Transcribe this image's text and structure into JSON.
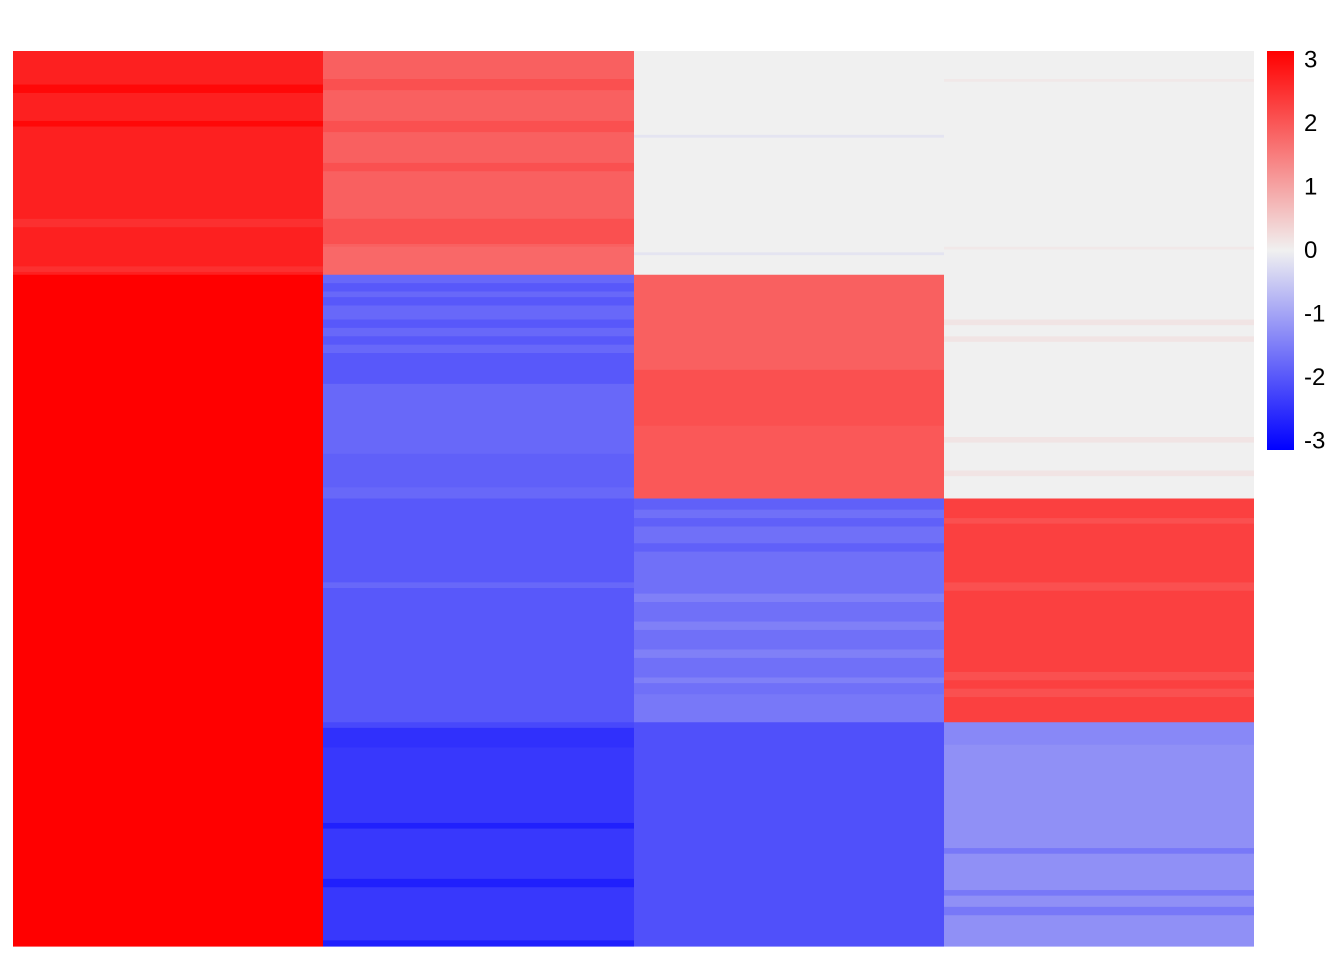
{
  "chart_data": {
    "type": "heatmap",
    "title": "",
    "xlabel": "",
    "ylabel": "",
    "columns": 4,
    "row_blocks": 4,
    "rows_per_block": 80,
    "color_scale": {
      "min": -3,
      "max": 3,
      "low_color": "#0000ff",
      "mid_color": "#f0f0f0",
      "high_color": "#ff0000",
      "ticks": [
        3,
        2,
        1,
        0,
        -1,
        -2,
        -3
      ],
      "tick_labels": [
        "3",
        "2",
        "1",
        "0",
        "-1",
        "-2",
        "-3"
      ]
    },
    "block_values": [
      [
        2.6,
        1.8,
        0.0,
        0.0
      ],
      [
        3.0,
        -1.7,
        2.0,
        0.0
      ],
      [
        3.0,
        -1.9,
        -1.6,
        2.2
      ],
      [
        3.0,
        -2.4,
        -2.0,
        -1.3
      ]
    ],
    "row_variations": [
      {
        "block": 0,
        "column": 0,
        "rows": [
          12,
          13,
          14,
          25,
          26
        ],
        "value": 2.9
      },
      {
        "block": 0,
        "column": 0,
        "rows": [
          60,
          61,
          62,
          77,
          78
        ],
        "value": 2.4
      },
      {
        "block": 0,
        "column": 1,
        "rows": [
          10,
          11,
          12,
          13,
          25,
          26,
          27,
          28,
          40,
          41,
          42,
          60,
          61,
          62,
          63,
          64,
          65,
          66,
          67,
          68
        ],
        "value": 2.0
      },
      {
        "block": 0,
        "column": 1,
        "rows": [
          70,
          71,
          72,
          73,
          74,
          75,
          76,
          77,
          78,
          79
        ],
        "value": 1.7
      },
      {
        "block": 0,
        "column": 2,
        "rows": [
          30,
          72
        ],
        "value": -0.15
      },
      {
        "block": 0,
        "column": 3,
        "rows": [
          10,
          70
        ],
        "value": 0.1
      },
      {
        "block": 1,
        "column": 1,
        "rows": [
          3,
          4,
          5,
          8,
          9,
          10,
          16,
          17,
          18,
          22,
          23,
          24,
          28,
          29,
          30,
          31,
          32,
          33,
          34,
          35,
          36,
          37,
          38
        ],
        "value": -1.9
      },
      {
        "block": 1,
        "column": 1,
        "rows": [
          64,
          65,
          66,
          67,
          68,
          69,
          70,
          71,
          72,
          73,
          74,
          75
        ],
        "value": -1.8
      },
      {
        "block": 1,
        "column": 2,
        "rows": [
          0,
          1,
          2,
          3,
          4,
          5,
          6,
          7,
          8,
          9,
          10,
          11,
          12,
          13,
          14,
          15,
          16,
          17,
          18,
          19,
          20,
          21,
          22,
          23,
          24,
          25,
          26,
          27,
          28,
          29,
          30,
          31,
          32,
          33
        ],
        "value": 1.8
      },
      {
        "block": 1,
        "column": 2,
        "rows": [
          54,
          55,
          56,
          57,
          58,
          59,
          60,
          61,
          62,
          63,
          64,
          65,
          66,
          67,
          68,
          69,
          70,
          71,
          72,
          73,
          74,
          75,
          76,
          77,
          78,
          79
        ],
        "value": 1.9
      },
      {
        "block": 1,
        "column": 3,
        "rows": [
          16,
          17,
          22,
          23,
          58,
          59,
          70,
          71
        ],
        "value": 0.15
      },
      {
        "block": 2,
        "column": 1,
        "rows": [
          30,
          31
        ],
        "value": -1.7
      },
      {
        "block": 2,
        "column": 2,
        "rows": [
          0,
          1,
          2,
          3,
          7,
          8,
          9,
          16,
          17,
          18
        ],
        "value": -1.8
      },
      {
        "block": 2,
        "column": 2,
        "rows": [
          34,
          35,
          36,
          44,
          45,
          46,
          54,
          55,
          56,
          64,
          65
        ],
        "value": -1.4
      },
      {
        "block": 2,
        "column": 2,
        "rows": [
          70,
          71,
          72,
          73,
          74,
          75,
          76,
          77,
          78,
          79
        ],
        "value": -1.5
      },
      {
        "block": 2,
        "column": 3,
        "rows": [
          7,
          8,
          30,
          31,
          32,
          62,
          63,
          64,
          68,
          69,
          70
        ],
        "value": 2.0
      },
      {
        "block": 3,
        "column": 1,
        "rows": [
          0,
          1,
          9,
          10,
          11,
          12,
          13,
          14,
          15,
          16,
          17,
          18,
          19,
          20,
          21,
          22,
          23,
          24,
          25,
          26,
          27,
          28,
          29,
          30,
          31,
          32,
          33,
          34,
          35,
          36,
          37,
          38,
          39,
          40,
          41,
          42,
          43,
          44,
          45,
          46,
          47,
          48,
          49,
          50,
          51,
          52,
          53,
          54,
          55,
          56,
          57,
          58,
          59,
          60,
          61,
          62,
          63,
          64,
          65,
          66,
          67,
          68,
          69,
          70,
          71,
          72,
          73,
          74,
          75,
          76,
          77,
          78,
          79
        ],
        "value": -2.1
      },
      {
        "block": 3,
        "column": 1,
        "rows": [
          9,
          10,
          11,
          12,
          13,
          14,
          15,
          16,
          17,
          18,
          19,
          20,
          21,
          22,
          23,
          24,
          25,
          26,
          27,
          28,
          29,
          30,
          31,
          32,
          33,
          34,
          35,
          36,
          37,
          38,
          39,
          40,
          41,
          42,
          43,
          44,
          45,
          46,
          47,
          48,
          49,
          50,
          51,
          52,
          53,
          54,
          55,
          56,
          57,
          58,
          59,
          60,
          61,
          62,
          63,
          64,
          65,
          66,
          67,
          68,
          69,
          70,
          71,
          72,
          73,
          74,
          75,
          76,
          77,
          78,
          79
        ],
        "value": -2.3
      },
      {
        "block": 3,
        "column": 1,
        "rows": [
          36,
          37,
          56,
          57,
          58,
          78,
          79
        ],
        "value": -2.6
      },
      {
        "block": 3,
        "column": 3,
        "rows": [
          8,
          9,
          10,
          11,
          12,
          13,
          14,
          15,
          16,
          17,
          18,
          19,
          20,
          21,
          22,
          23,
          24,
          25,
          26,
          27,
          28,
          29,
          30,
          31,
          32,
          33,
          34,
          35,
          36,
          37,
          38,
          39,
          40,
          41,
          42,
          43,
          44,
          45,
          46,
          47,
          48,
          49,
          50,
          51,
          52,
          53,
          54,
          55,
          56,
          57,
          58,
          59,
          60,
          61,
          62,
          63,
          64,
          65,
          66,
          67,
          68,
          69,
          70,
          71,
          72,
          73,
          74,
          75,
          76,
          77,
          78,
          79
        ],
        "value": -1.2
      },
      {
        "block": 3,
        "column": 3,
        "rows": [
          45,
          46,
          60,
          61,
          66,
          67,
          68
        ],
        "value": -1.5
      }
    ]
  }
}
